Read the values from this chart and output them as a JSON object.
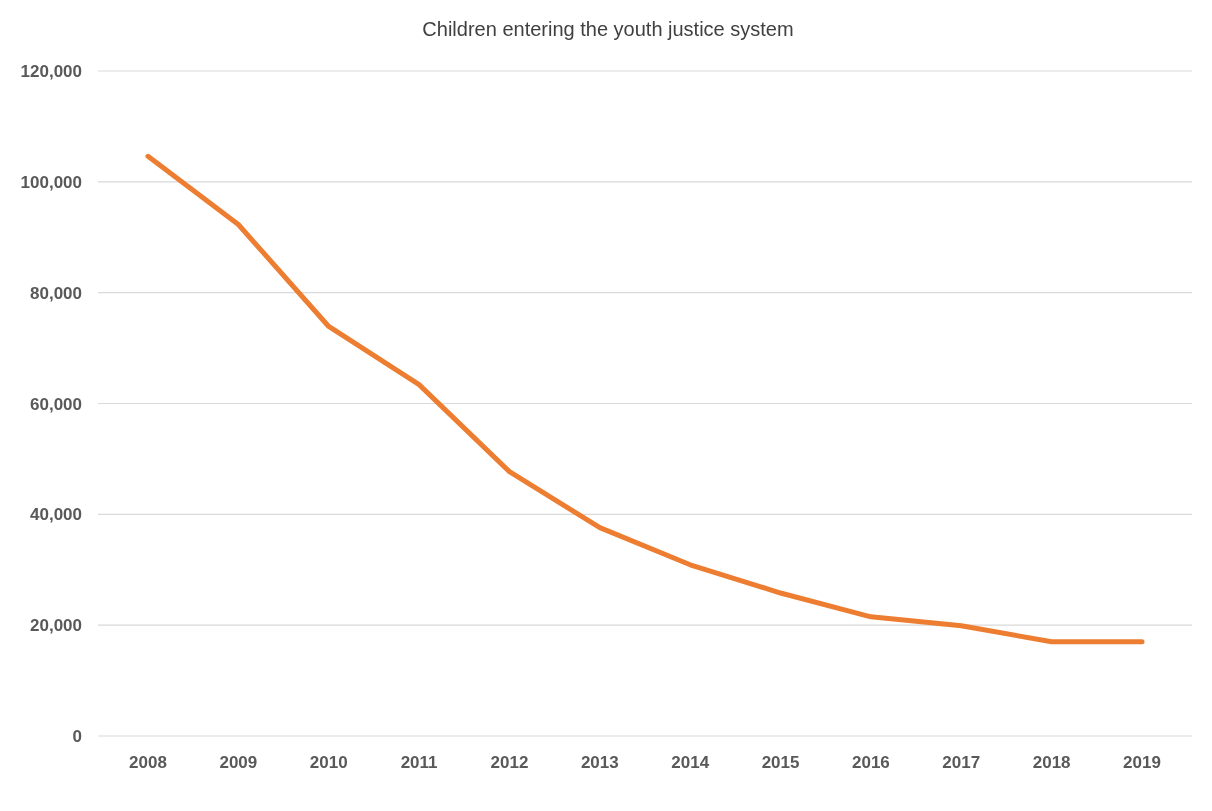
{
  "chart_data": {
    "type": "line",
    "title": "Children entering the youth justice system",
    "categories": [
      "2008",
      "2009",
      "2010",
      "2011",
      "2012",
      "2013",
      "2014",
      "2015",
      "2016",
      "2017",
      "2018",
      "2019"
    ],
    "series": [
      {
        "color": "#ed7d31",
        "values": [
          104600,
          92300,
          73900,
          63400,
          47700,
          37600,
          30900,
          25800,
          21500,
          19900,
          17000,
          17000
        ]
      }
    ],
    "ylim": [
      0,
      120000
    ],
    "yticks": [
      {
        "value": 0,
        "label": "0"
      },
      {
        "value": 20000,
        "label": "20,000"
      },
      {
        "value": 40000,
        "label": "40,000"
      },
      {
        "value": 60000,
        "label": "60,000"
      },
      {
        "value": 80000,
        "label": "80,000"
      },
      {
        "value": 100000,
        "label": "100,000"
      },
      {
        "value": 120000,
        "label": "120,000"
      }
    ],
    "grid": "y",
    "marker": "none",
    "line_style": "solid"
  }
}
